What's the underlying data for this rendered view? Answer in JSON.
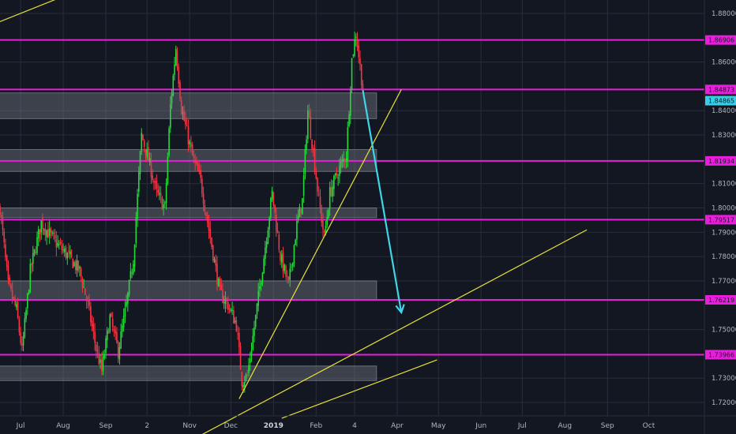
{
  "colors": {
    "background": "#131722",
    "grid": "#2a2e39",
    "bull": "#26d93a",
    "bear": "#f23645",
    "level": "#e91edc",
    "trendline": "#e6e13a",
    "zone": "#787b86",
    "arrow": "#3fd5e6",
    "last_price_bg": "#35d0e8",
    "axis_text": "#b2b5be"
  },
  "chart_data": {
    "type": "candlestick",
    "title": "",
    "xlabel": "",
    "ylabel": "",
    "ylim": [
      1.7145,
      1.8855
    ],
    "grid": true,
    "y_ticks": [
      "1.88000",
      "1.86000",
      "1.84000",
      "1.83000",
      "1.81000",
      "1.80000",
      "1.79000",
      "1.78000",
      "1.77000",
      "1.75000",
      "1.73000",
      "1.72000"
    ],
    "x_ticks": [
      {
        "label": "Jul",
        "day": 15
      },
      {
        "label": "Aug",
        "day": 46
      },
      {
        "label": "Sep",
        "day": 77
      },
      {
        "label": "2",
        "day": 107
      },
      {
        "label": "Nov",
        "day": 138
      },
      {
        "label": "Dec",
        "day": 168
      },
      {
        "label": "2019",
        "day": 199,
        "bold": true
      },
      {
        "label": "Feb",
        "day": 230
      },
      {
        "label": "4",
        "day": 258
      },
      {
        "label": "Apr",
        "day": 289
      },
      {
        "label": "May",
        "day": 319
      },
      {
        "label": "Jun",
        "day": 350
      },
      {
        "label": "Jul",
        "day": 380
      },
      {
        "label": "Aug",
        "day": 411
      },
      {
        "label": "Sep",
        "day": 442
      },
      {
        "label": "Oct",
        "day": 472
      }
    ],
    "x_domain": [
      0,
      520
    ],
    "price_path": [
      [
        0,
        1.8
      ],
      [
        6,
        1.768
      ],
      [
        12,
        1.758
      ],
      [
        16,
        1.741
      ],
      [
        22,
        1.774
      ],
      [
        30,
        1.794
      ],
      [
        40,
        1.786
      ],
      [
        50,
        1.78
      ],
      [
        58,
        1.774
      ],
      [
        64,
        1.76
      ],
      [
        70,
        1.742
      ],
      [
        74,
        1.733
      ],
      [
        80,
        1.755
      ],
      [
        86,
        1.741
      ],
      [
        92,
        1.76
      ],
      [
        97,
        1.779
      ],
      [
        103,
        1.83
      ],
      [
        108,
        1.82
      ],
      [
        114,
        1.806
      ],
      [
        120,
        1.8
      ],
      [
        124,
        1.842
      ],
      [
        128,
        1.866
      ],
      [
        132,
        1.841
      ],
      [
        140,
        1.821
      ],
      [
        146,
        1.811
      ],
      [
        152,
        1.791
      ],
      [
        160,
        1.765
      ],
      [
        166,
        1.76
      ],
      [
        172,
        1.752
      ],
      [
        176,
        1.729
      ],
      [
        180,
        1.731
      ],
      [
        186,
        1.755
      ],
      [
        192,
        1.78
      ],
      [
        198,
        1.806
      ],
      [
        204,
        1.78
      ],
      [
        210,
        1.768
      ],
      [
        216,
        1.793
      ],
      [
        220,
        1.803
      ],
      [
        224,
        1.84
      ],
      [
        228,
        1.823
      ],
      [
        232,
        1.803
      ],
      [
        236,
        1.788
      ],
      [
        240,
        1.806
      ],
      [
        246,
        1.815
      ],
      [
        252,
        1.822
      ],
      [
        256,
        1.861
      ],
      [
        259,
        1.872
      ],
      [
        262,
        1.858
      ],
      [
        264,
        1.849
      ]
    ],
    "levels": [
      {
        "value": 1.86906,
        "label": "1.86906"
      },
      {
        "value": 1.84873,
        "label": "1.84873"
      },
      {
        "value": 1.81934,
        "label": "1.81934"
      },
      {
        "value": 1.79517,
        "label": "1.79517"
      },
      {
        "value": 1.76219,
        "label": "1.76219"
      },
      {
        "value": 1.73966,
        "label": "1.73966"
      }
    ],
    "last_price": {
      "value": 1.84865,
      "label": "1.84865"
    },
    "zones": [
      {
        "x0": -5,
        "x1": 274,
        "y0": 1.8367,
        "y1": 1.8473
      },
      {
        "x0": -5,
        "x1": 274,
        "y0": 1.815,
        "y1": 1.824
      },
      {
        "x0": -5,
        "x1": 274,
        "y0": 1.796,
        "y1": 1.8
      },
      {
        "x0": -5,
        "x1": 274,
        "y0": 1.762,
        "y1": 1.77
      },
      {
        "x0": -5,
        "x1": 274,
        "y0": 1.729,
        "y1": 1.735
      }
    ],
    "trendlines": [
      {
        "x0": -5,
        "y0": 1.8755,
        "x1": 66,
        "y1": 1.8915
      },
      {
        "x0": 174,
        "y0": 1.7215,
        "x1": 292,
        "y1": 1.8487
      },
      {
        "x0": 146,
        "y0": 1.7065,
        "x1": 427,
        "y1": 1.791
      },
      {
        "x0": 205,
        "y0": 1.7135,
        "x1": 318,
        "y1": 1.7375
      }
    ],
    "arrow": {
      "x0": 264,
      "y0": 1.8484,
      "x1": 292,
      "y1": 1.757
    }
  }
}
